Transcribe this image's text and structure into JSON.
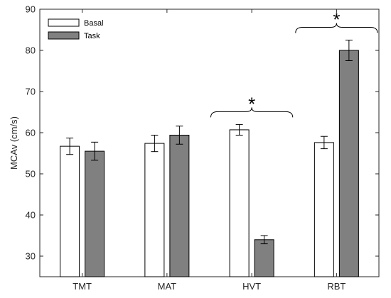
{
  "chart_data": {
    "type": "bar",
    "categories": [
      "TMT",
      "MAT",
      "HVT",
      "RBT"
    ],
    "series": [
      {
        "name": "Basal",
        "color": "#ffffff",
        "values": [
          56.7,
          57.4,
          60.7,
          57.6
        ],
        "errors": [
          2.0,
          2.0,
          1.3,
          1.5
        ]
      },
      {
        "name": "Task",
        "color": "#808080",
        "values": [
          55.5,
          59.4,
          34.0,
          80.0
        ],
        "errors": [
          2.2,
          2.2,
          1.0,
          2.5
        ]
      }
    ],
    "ylabel": "MCAv (cm/s)",
    "xlabel": "",
    "ylim": [
      25,
      90
    ],
    "yticks": [
      30,
      40,
      50,
      60,
      70,
      80,
      90
    ],
    "legend_position": "top-left",
    "grid": false,
    "annotations": [
      {
        "category": "HVT",
        "text": "*"
      },
      {
        "category": "RBT",
        "text": "*"
      }
    ]
  }
}
